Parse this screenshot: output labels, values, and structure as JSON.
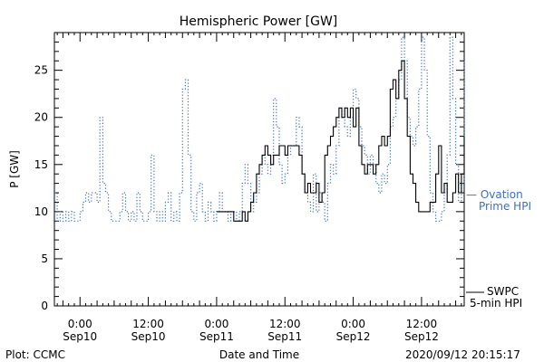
{
  "chart_data": {
    "type": "line",
    "title": "Hemispheric Power [GW]",
    "ylabel": "P [GW]",
    "xlabel": "Date and Time",
    "ylim": [
      0,
      29
    ],
    "yticks": [
      0,
      5,
      10,
      15,
      20,
      25
    ],
    "xlim_hours": [
      -4.5,
      67.5
    ],
    "xticks": [
      {
        "t": 0,
        "time": "0:00",
        "date": "Sep10"
      },
      {
        "t": 12,
        "time": "12:00",
        "date": "Sep10"
      },
      {
        "t": 24,
        "time": "0:00",
        "date": "Sep11"
      },
      {
        "t": 36,
        "time": "12:00",
        "date": "Sep11"
      },
      {
        "t": 48,
        "time": "0:00",
        "date": "Sep12"
      },
      {
        "t": 60,
        "time": "12:00",
        "date": "Sep12"
      }
    ],
    "series": [
      {
        "name": "Ovation Prime HPI",
        "legend": [
          "— Ovation",
          "Prime HPI"
        ],
        "color": "#3a6fc4",
        "style": "dotted",
        "points": [
          [
            -4.5,
            12
          ],
          [
            -4,
            9
          ],
          [
            -3.5,
            10
          ],
          [
            -3,
            9
          ],
          [
            -2.5,
            10
          ],
          [
            -2,
            9
          ],
          [
            -1.5,
            10
          ],
          [
            -1,
            9
          ],
          [
            -0.5,
            9
          ],
          [
            0,
            10
          ],
          [
            0.5,
            11
          ],
          [
            1,
            12
          ],
          [
            1.5,
            11
          ],
          [
            2,
            12
          ],
          [
            2.5,
            12
          ],
          [
            3,
            11
          ],
          [
            3.5,
            20
          ],
          [
            4,
            13
          ],
          [
            4.5,
            12
          ],
          [
            5,
            10
          ],
          [
            5.5,
            9
          ],
          [
            6,
            9
          ],
          [
            6.5,
            9
          ],
          [
            7,
            10
          ],
          [
            7.5,
            12
          ],
          [
            8,
            10
          ],
          [
            8.5,
            9
          ],
          [
            9,
            10
          ],
          [
            9.5,
            9
          ],
          [
            10,
            12
          ],
          [
            10.5,
            10
          ],
          [
            11,
            9
          ],
          [
            11.5,
            9
          ],
          [
            12,
            10
          ],
          [
            12.5,
            16
          ],
          [
            13,
            10
          ],
          [
            13.5,
            9
          ],
          [
            14,
            10
          ],
          [
            14.5,
            9
          ],
          [
            15,
            11
          ],
          [
            15.5,
            12
          ],
          [
            16,
            9
          ],
          [
            16.5,
            10
          ],
          [
            17,
            9
          ],
          [
            17.5,
            12
          ],
          [
            18,
            23
          ],
          [
            18.5,
            24
          ],
          [
            19,
            16
          ],
          [
            19.5,
            10
          ],
          [
            20,
            9
          ],
          [
            20.5,
            12
          ],
          [
            21,
            13
          ],
          [
            21.5,
            10
          ],
          [
            22,
            9
          ],
          [
            22.5,
            11
          ],
          [
            23,
            10
          ],
          [
            23.5,
            9
          ],
          [
            24,
            10
          ],
          [
            24.5,
            12
          ],
          [
            25,
            10
          ],
          [
            25.5,
            10
          ],
          [
            26,
            9
          ],
          [
            26.5,
            10
          ],
          [
            27,
            10
          ],
          [
            27.5,
            9
          ],
          [
            28,
            10
          ],
          [
            28.5,
            13
          ],
          [
            29,
            15
          ],
          [
            29.5,
            13
          ],
          [
            30,
            10
          ],
          [
            30.5,
            11
          ],
          [
            31,
            12
          ],
          [
            31.5,
            14
          ],
          [
            32,
            16
          ],
          [
            32.5,
            15
          ],
          [
            33,
            14
          ],
          [
            33.5,
            16
          ],
          [
            34,
            22
          ],
          [
            34.5,
            19
          ],
          [
            35,
            15
          ],
          [
            35.5,
            13
          ],
          [
            36,
            14
          ],
          [
            36.5,
            16
          ],
          [
            37,
            17
          ],
          [
            37.5,
            17
          ],
          [
            38,
            20
          ],
          [
            38.5,
            19
          ],
          [
            39,
            14
          ],
          [
            39.5,
            12
          ],
          [
            40,
            11
          ],
          [
            40.5,
            10
          ],
          [
            41,
            14
          ],
          [
            41.5,
            10
          ],
          [
            42,
            12
          ],
          [
            42.5,
            11
          ],
          [
            43,
            9
          ],
          [
            43.5,
            13
          ],
          [
            44,
            15
          ],
          [
            44.5,
            14
          ],
          [
            45,
            17
          ],
          [
            45.5,
            20
          ],
          [
            46,
            21
          ],
          [
            46.5,
            19
          ],
          [
            47,
            18
          ],
          [
            47.5,
            20
          ],
          [
            48,
            23
          ],
          [
            48.5,
            22
          ],
          [
            49,
            19
          ],
          [
            49.5,
            17
          ],
          [
            50,
            16
          ],
          [
            50.5,
            14
          ],
          [
            51,
            16
          ],
          [
            51.5,
            15
          ],
          [
            52,
            13
          ],
          [
            52.5,
            12
          ],
          [
            53,
            14
          ],
          [
            53.5,
            13
          ],
          [
            54,
            15
          ],
          [
            54.5,
            19
          ],
          [
            55,
            20
          ],
          [
            55.5,
            22
          ],
          [
            56,
            24
          ],
          [
            56.5,
            28.5
          ],
          [
            57,
            26
          ],
          [
            57.5,
            20
          ],
          [
            58,
            18
          ],
          [
            58.5,
            17
          ],
          [
            59,
            19
          ],
          [
            59.5,
            23
          ],
          [
            60,
            28.5
          ],
          [
            60.5,
            25
          ],
          [
            61,
            18
          ],
          [
            61.5,
            12
          ],
          [
            62,
            10
          ],
          [
            62.5,
            9
          ],
          [
            63,
            9
          ],
          [
            63.5,
            10
          ],
          [
            64,
            12
          ],
          [
            64.5,
            16
          ],
          [
            65,
            28.5
          ],
          [
            65.5,
            22
          ],
          [
            66,
            15
          ],
          [
            66.5,
            11
          ],
          [
            67,
            13
          ],
          [
            67.5,
            26
          ]
        ]
      },
      {
        "name": "SWPC 5-min HPI",
        "legend": [
          "SWPC",
          "5-min HPI"
        ],
        "color": "#000000",
        "style": "solid",
        "points": [
          [
            24,
            10
          ],
          [
            26.5,
            10
          ],
          [
            27,
            9
          ],
          [
            28,
            9
          ],
          [
            28.5,
            10
          ],
          [
            29,
            9
          ],
          [
            29.5,
            10
          ],
          [
            30,
            11
          ],
          [
            30.5,
            12
          ],
          [
            31,
            14
          ],
          [
            31.5,
            15
          ],
          [
            32,
            16
          ],
          [
            32.5,
            17
          ],
          [
            33,
            16
          ],
          [
            33.5,
            15
          ],
          [
            34,
            16
          ],
          [
            34.5,
            16
          ],
          [
            35,
            17
          ],
          [
            35.5,
            17
          ],
          [
            36,
            16
          ],
          [
            36.5,
            17
          ],
          [
            37,
            17
          ],
          [
            37.5,
            17
          ],
          [
            38,
            17
          ],
          [
            38.5,
            16
          ],
          [
            39,
            14
          ],
          [
            39.5,
            12
          ],
          [
            40,
            13
          ],
          [
            40.5,
            12
          ],
          [
            41,
            12
          ],
          [
            41.5,
            13
          ],
          [
            42,
            11
          ],
          [
            42.5,
            12
          ],
          [
            43,
            16
          ],
          [
            43.5,
            17
          ],
          [
            44,
            18
          ],
          [
            44.5,
            19
          ],
          [
            45,
            20
          ],
          [
            45.5,
            21
          ],
          [
            46,
            20
          ],
          [
            46.5,
            21
          ],
          [
            47,
            20
          ],
          [
            47.5,
            21
          ],
          [
            48,
            19
          ],
          [
            48.5,
            21
          ],
          [
            49,
            17
          ],
          [
            49.5,
            15
          ],
          [
            50,
            14
          ],
          [
            50.5,
            15
          ],
          [
            51,
            15
          ],
          [
            51.5,
            14
          ],
          [
            52,
            15
          ],
          [
            52.5,
            17
          ],
          [
            53,
            18
          ],
          [
            53.5,
            17
          ],
          [
            54,
            18
          ],
          [
            54.5,
            23
          ],
          [
            55,
            24
          ],
          [
            55.5,
            22
          ],
          [
            56,
            25
          ],
          [
            56.5,
            26
          ],
          [
            57,
            22
          ],
          [
            57.5,
            18
          ],
          [
            58,
            14
          ],
          [
            58.5,
            13
          ],
          [
            59,
            11
          ],
          [
            59.5,
            10
          ],
          [
            60,
            10
          ],
          [
            60.5,
            10
          ],
          [
            61,
            10
          ],
          [
            61.5,
            11
          ],
          [
            62,
            11
          ],
          [
            62.5,
            14
          ],
          [
            63,
            17
          ],
          [
            63.5,
            12
          ],
          [
            64,
            13
          ],
          [
            64.5,
            11
          ],
          [
            65,
            11
          ],
          [
            65.5,
            12
          ],
          [
            66,
            14
          ],
          [
            66.5,
            12
          ],
          [
            67,
            14
          ],
          [
            67.5,
            18
          ]
        ]
      }
    ]
  },
  "footer": {
    "left": "Plot: CCMC",
    "center": "Date and Time",
    "right": "2020/09/12 20:15:17"
  }
}
